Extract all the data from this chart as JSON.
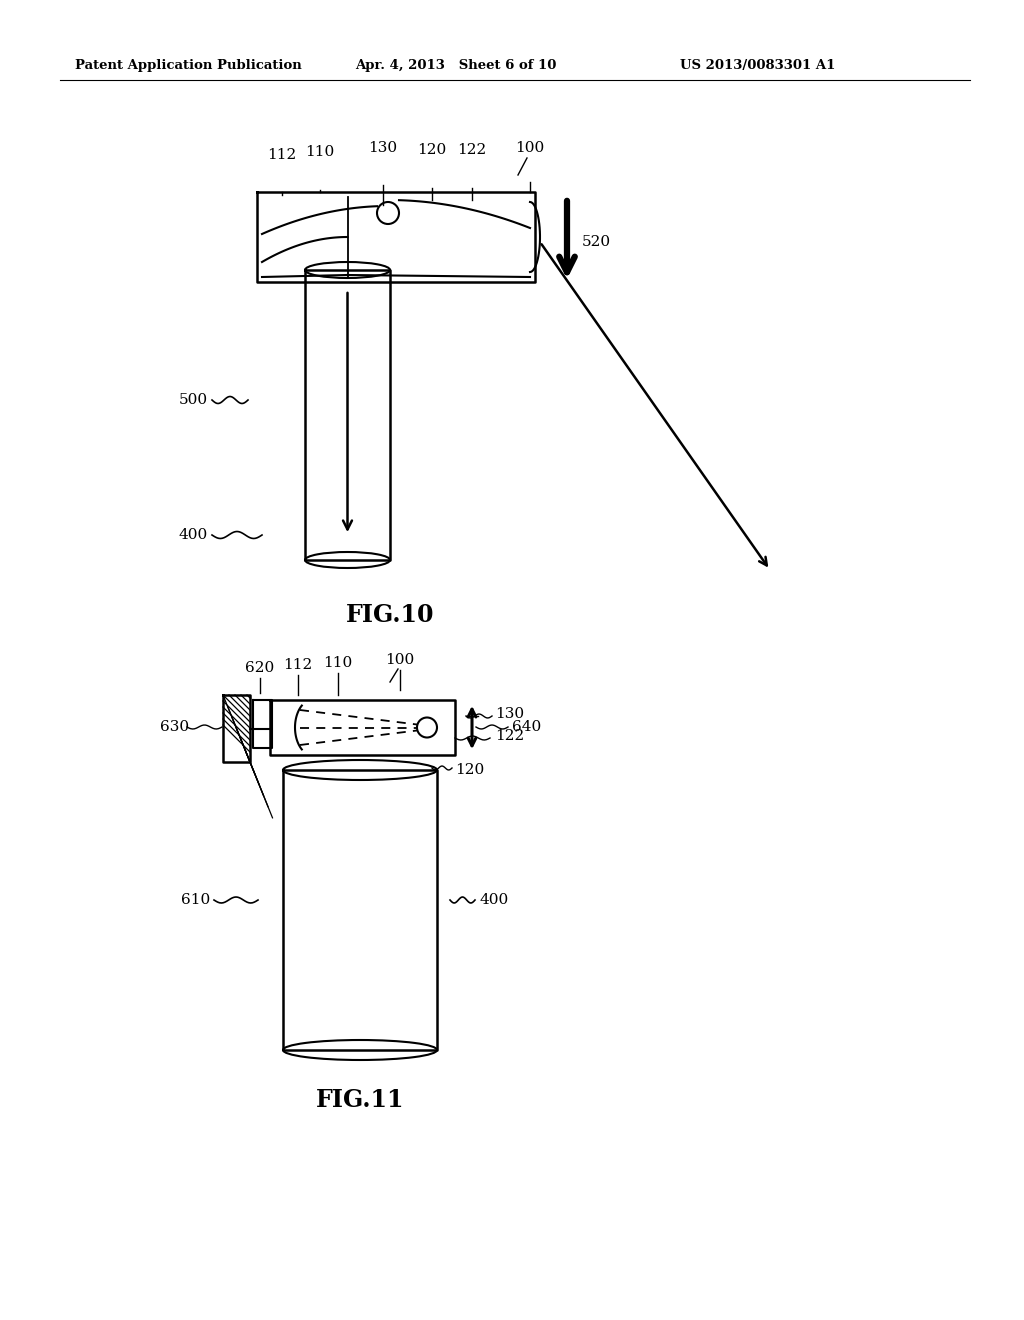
{
  "bg_color": "#ffffff",
  "header_left": "Patent Application Publication",
  "header_mid": "Apr. 4, 2013   Sheet 6 of 10",
  "header_right": "US 2013/0083301 A1",
  "fig10_label": "FIG.10",
  "fig11_label": "FIG.11"
}
